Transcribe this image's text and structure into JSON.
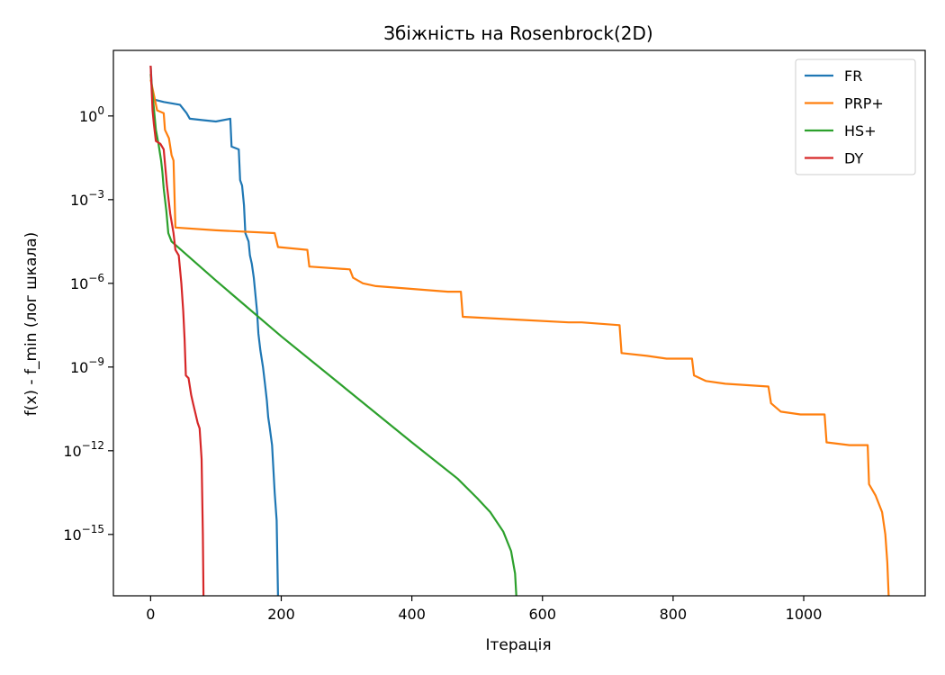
{
  "chart_data": {
    "type": "line",
    "title": "Збіжність на Rosenbrock(2D)",
    "xlabel": "Ітерація",
    "ylabel": "f(x) - f_min (лог шкала)",
    "y_scale": "log",
    "xlim": [
      -57,
      1186
    ],
    "ylim_log10": [
      -17.2,
      2.35
    ],
    "x_ticks": [
      0,
      200,
      400,
      600,
      800,
      1000
    ],
    "y_ticks": [
      {
        "exp": 0,
        "label": "10",
        "sup": "0"
      },
      {
        "exp": -3,
        "label": "10",
        "sup": "−3"
      },
      {
        "exp": -6,
        "label": "10",
        "sup": "−6"
      },
      {
        "exp": -9,
        "label": "10",
        "sup": "−9"
      },
      {
        "exp": -12,
        "label": "10",
        "sup": "−12"
      },
      {
        "exp": -15,
        "label": "10",
        "sup": "−15"
      }
    ],
    "grid": false,
    "legend_position": "top-right",
    "series": [
      {
        "name": "FR",
        "color": "#1f77b4",
        "points": [
          [
            0,
            1.8
          ],
          [
            3,
            0.6
          ],
          [
            20,
            0.5
          ],
          [
            45,
            0.4
          ],
          [
            55,
            0.1
          ],
          [
            60,
            -0.1
          ],
          [
            80,
            -0.15
          ],
          [
            100,
            -0.2
          ],
          [
            122,
            -0.1
          ],
          [
            124,
            -1.1
          ],
          [
            135,
            -1.2
          ],
          [
            137,
            -2.3
          ],
          [
            140,
            -2.5
          ],
          [
            143,
            -3.2
          ],
          [
            145,
            -4.2
          ],
          [
            150,
            -4.5
          ],
          [
            152,
            -5.0
          ],
          [
            155,
            -5.3
          ],
          [
            158,
            -5.8
          ],
          [
            163,
            -7.0
          ],
          [
            165,
            -7.8
          ],
          [
            168,
            -8.4
          ],
          [
            172,
            -9.0
          ],
          [
            175,
            -9.6
          ],
          [
            178,
            -10.2
          ],
          [
            180,
            -10.8
          ],
          [
            182,
            -11.1
          ],
          [
            186,
            -11.8
          ],
          [
            190,
            -13.5
          ],
          [
            193,
            -14.5
          ],
          [
            195,
            -17.2
          ]
        ]
      },
      {
        "name": "PRP+",
        "color": "#ff7f0e",
        "points": [
          [
            0,
            1.3
          ],
          [
            10,
            0.2
          ],
          [
            20,
            0.1
          ],
          [
            22,
            -0.5
          ],
          [
            28,
            -0.8
          ],
          [
            32,
            -1.4
          ],
          [
            35,
            -1.6
          ],
          [
            38,
            -4.0
          ],
          [
            100,
            -4.1
          ],
          [
            190,
            -4.2
          ],
          [
            195,
            -4.7
          ],
          [
            240,
            -4.8
          ],
          [
            243,
            -5.4
          ],
          [
            305,
            -5.5
          ],
          [
            310,
            -5.8
          ],
          [
            325,
            -6.0
          ],
          [
            345,
            -6.1
          ],
          [
            400,
            -6.2
          ],
          [
            455,
            -6.3
          ],
          [
            475,
            -6.3
          ],
          [
            478,
            -7.2
          ],
          [
            560,
            -7.3
          ],
          [
            640,
            -7.4
          ],
          [
            660,
            -7.4
          ],
          [
            718,
            -7.5
          ],
          [
            721,
            -8.5
          ],
          [
            760,
            -8.6
          ],
          [
            790,
            -8.7
          ],
          [
            829,
            -8.7
          ],
          [
            832,
            -9.3
          ],
          [
            850,
            -9.5
          ],
          [
            880,
            -9.6
          ],
          [
            946,
            -9.7
          ],
          [
            950,
            -10.3
          ],
          [
            965,
            -10.6
          ],
          [
            995,
            -10.7
          ],
          [
            1032,
            -10.7
          ],
          [
            1035,
            -11.7
          ],
          [
            1070,
            -11.8
          ],
          [
            1098,
            -11.8
          ],
          [
            1100,
            -13.2
          ],
          [
            1110,
            -13.6
          ],
          [
            1120,
            -14.2
          ],
          [
            1125,
            -15.0
          ],
          [
            1128,
            -16.0
          ],
          [
            1130,
            -17.2
          ]
        ]
      },
      {
        "name": "HS+",
        "color": "#2ca02c",
        "points": [
          [
            0,
            1.5
          ],
          [
            8,
            -0.5
          ],
          [
            12,
            -1.0
          ],
          [
            16,
            -1.6
          ],
          [
            18,
            -2.0
          ],
          [
            20,
            -2.6
          ],
          [
            24,
            -3.4
          ],
          [
            27,
            -4.2
          ],
          [
            32,
            -4.5
          ],
          [
            100,
            -5.9
          ],
          [
            200,
            -7.9
          ],
          [
            300,
            -9.8
          ],
          [
            400,
            -11.7
          ],
          [
            470,
            -13.0
          ],
          [
            500,
            -13.7
          ],
          [
            520,
            -14.2
          ],
          [
            540,
            -14.9
          ],
          [
            552,
            -15.6
          ],
          [
            558,
            -16.4
          ],
          [
            560,
            -17.2
          ]
        ]
      },
      {
        "name": "DY",
        "color": "#d62728",
        "points": [
          [
            0,
            1.8
          ],
          [
            3,
            0.2
          ],
          [
            5,
            -0.3
          ],
          [
            8,
            -0.9
          ],
          [
            15,
            -1.0
          ],
          [
            20,
            -1.2
          ],
          [
            25,
            -2.5
          ],
          [
            30,
            -3.5
          ],
          [
            35,
            -4.2
          ],
          [
            38,
            -4.8
          ],
          [
            43,
            -5.0
          ],
          [
            47,
            -6.0
          ],
          [
            50,
            -7.0
          ],
          [
            52,
            -8.0
          ],
          [
            54,
            -9.3
          ],
          [
            58,
            -9.4
          ],
          [
            62,
            -10.0
          ],
          [
            65,
            -10.3
          ],
          [
            68,
            -10.6
          ],
          [
            72,
            -11.0
          ],
          [
            75,
            -11.2
          ],
          [
            78,
            -12.3
          ],
          [
            80,
            -15.0
          ],
          [
            81,
            -17.2
          ]
        ]
      }
    ]
  }
}
